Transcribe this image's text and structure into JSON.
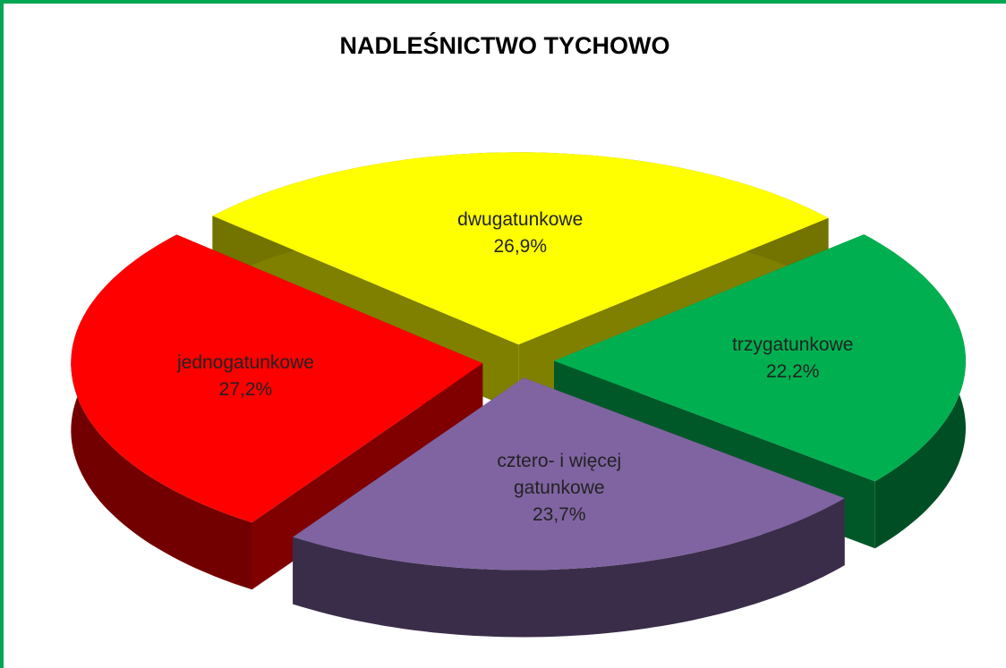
{
  "chart_data": {
    "type": "pie3d",
    "title": "NADLEŚNICTWO TYCHOWO",
    "categories": [
      "dwugatunkowe",
      "trzygatunkowe",
      "cztero- i więcej gatunkowe",
      "jednogatunkowe"
    ],
    "values": [
      26.9,
      22.2,
      23.7,
      27.2
    ],
    "value_labels": [
      "26,9%",
      "22,2%",
      "23,7%",
      "27,2%"
    ],
    "colors": [
      "#ffff00",
      "#00b050",
      "#8064a2",
      "#ff0000"
    ]
  }
}
